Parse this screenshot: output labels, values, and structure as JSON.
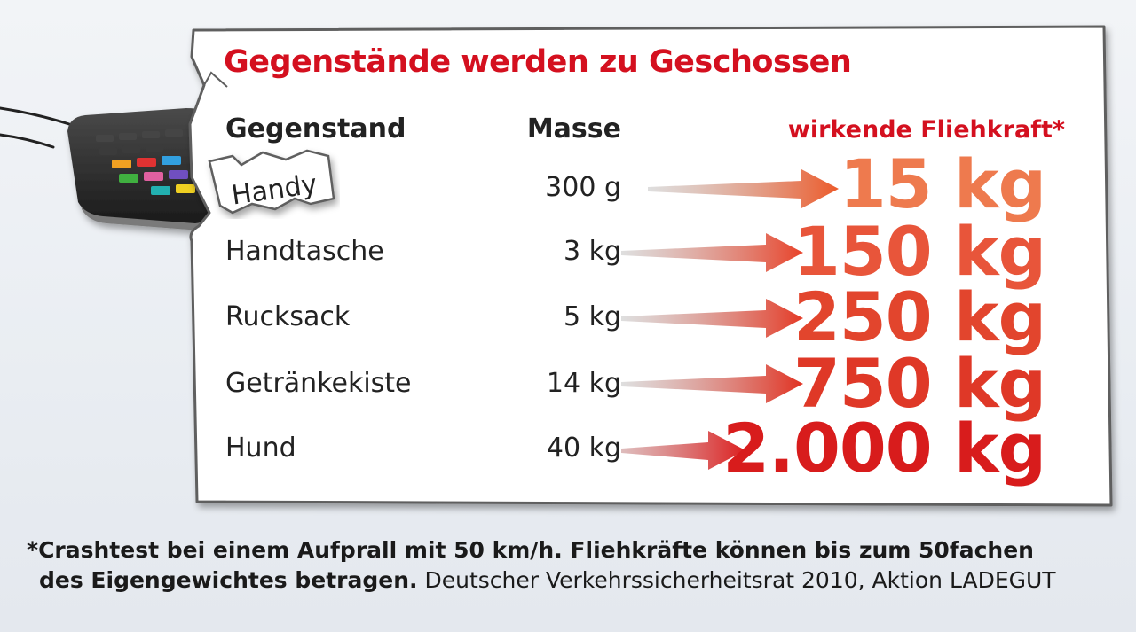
{
  "title": "Gegenstände werden zu Geschossen",
  "headers": {
    "item": "Gegenstand",
    "mass": "Masse",
    "force": "wirkende Fliehkraft*"
  },
  "rows": [
    {
      "item": "Handy",
      "mass": "300 g",
      "force": "15 kg",
      "force_kg": 15
    },
    {
      "item": "Handtasche",
      "mass": "3 kg",
      "force": "150 kg",
      "force_kg": 150
    },
    {
      "item": "Rucksack",
      "mass": "5 kg",
      "force": "250 kg",
      "force_kg": 250
    },
    {
      "item": "Getränkekiste",
      "mass": "14 kg",
      "force": "750 kg",
      "force_kg": 750
    },
    {
      "item": "Hund",
      "mass": "40 kg",
      "force": "2.000 kg",
      "force_kg": 2000
    }
  ],
  "footnote": {
    "bold_line1": "*Crashtest bei einem Aufprall mit 50 km/h. Fliehkräfte können bis zum 50fachen",
    "bold_line2": "des Eigengewichtes betragen.",
    "source": "Deutscher Verkehrssicherheitsrat 2010, Aktion LADEGUT"
  },
  "colors": {
    "accent": "#d4101f",
    "arrow_start": "#b8b8b8",
    "arrow_end": "#e2301f",
    "text": "#222222"
  },
  "icons": [
    "phone-illustration",
    "arrow-icon"
  ]
}
